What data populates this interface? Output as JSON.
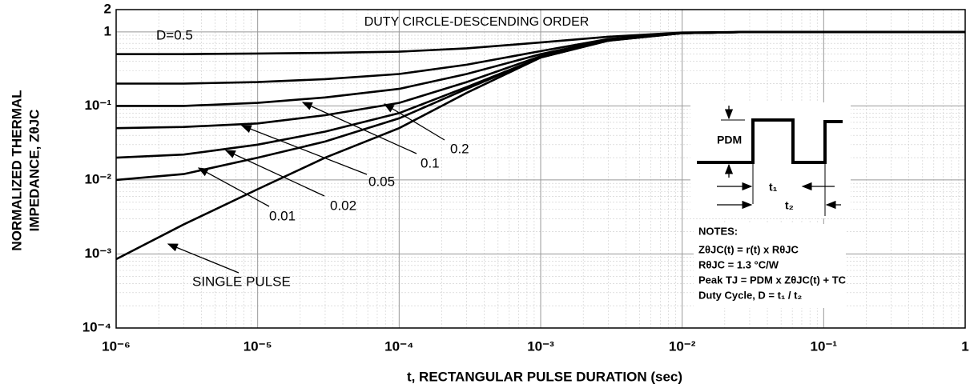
{
  "chart_data": {
    "type": "line",
    "title": "DUTY CIRCLE-DESCENDING ORDER",
    "x_label": "t, RECTANGULAR PULSE DURATION (sec)",
    "y_label": [
      "NORMALIZED THERMAL",
      "IMPEDANCE, ZθJC"
    ],
    "log_x": true,
    "log_y": true,
    "grid": true,
    "minor_grid": true,
    "x": [
      1e-06,
      3e-06,
      1e-05,
      3e-05,
      0.0001,
      0.0003,
      0.001,
      0.003,
      0.01,
      0.03,
      0.1,
      1
    ],
    "series": [
      {
        "name": "D=0.5",
        "color": "#000000",
        "values": [
          0.5,
          0.5,
          0.51,
          0.52,
          0.54,
          0.6,
          0.72,
          0.86,
          0.98,
          1,
          1,
          1
        ]
      },
      {
        "name": "0.2",
        "color": "#000000",
        "values": [
          0.2,
          0.2,
          0.21,
          0.23,
          0.27,
          0.36,
          0.55,
          0.8,
          0.97,
          1,
          1,
          1
        ]
      },
      {
        "name": "0.1",
        "color": "#000000",
        "values": [
          0.1,
          0.1,
          0.11,
          0.13,
          0.17,
          0.27,
          0.5,
          0.78,
          0.96,
          1,
          1,
          1
        ]
      },
      {
        "name": "0.05",
        "color": "#000000",
        "values": [
          0.05,
          0.052,
          0.058,
          0.075,
          0.11,
          0.21,
          0.47,
          0.77,
          0.96,
          1,
          1,
          1
        ]
      },
      {
        "name": "0.02",
        "color": "#000000",
        "values": [
          0.02,
          0.022,
          0.03,
          0.045,
          0.08,
          0.18,
          0.45,
          0.76,
          0.96,
          1,
          1,
          1
        ]
      },
      {
        "name": "0.01",
        "color": "#000000",
        "values": [
          0.01,
          0.012,
          0.02,
          0.033,
          0.068,
          0.17,
          0.45,
          0.76,
          0.96,
          1,
          1,
          1
        ]
      },
      {
        "name": "SINGLE PULSE",
        "color": "#000000",
        "values": [
          0.00085,
          0.0025,
          0.0075,
          0.02,
          0.05,
          0.15,
          0.45,
          0.78,
          0.96,
          1,
          1,
          1
        ]
      }
    ],
    "xlim": [
      1e-06,
      1
    ],
    "xticks": [
      {
        "value": 1e-06,
        "label": "10⁻⁶"
      },
      {
        "value": 1e-05,
        "label": "10⁻⁵"
      },
      {
        "value": 0.0001,
        "label": "10⁻⁴"
      },
      {
        "value": 0.001,
        "label": "10⁻³"
      },
      {
        "value": 0.01,
        "label": "10⁻²"
      },
      {
        "value": 0.1,
        "label": "10⁻¹"
      },
      1
    ],
    "ylim": [
      0.0001,
      2
    ],
    "yticks": [
      {
        "value": 0.0001,
        "label": "10⁻⁴"
      },
      {
        "value": 0.001,
        "label": "10⁻³"
      },
      {
        "value": 0.01,
        "label": "10⁻²"
      },
      {
        "value": 0.1,
        "label": "10⁻¹"
      },
      1,
      2
    ],
    "inset": {
      "pdm": "PDM",
      "t1": "t₁",
      "t2": "t₂"
    },
    "notes": [
      "NOTES:",
      "ZθJC(t) = r(t) x RθJC",
      "RθJC = 1.3 °C/W",
      "Peak TJ = PDM x ZθJC(t) + TC",
      "Duty Cycle, D = t₁ / t₂"
    ]
  }
}
